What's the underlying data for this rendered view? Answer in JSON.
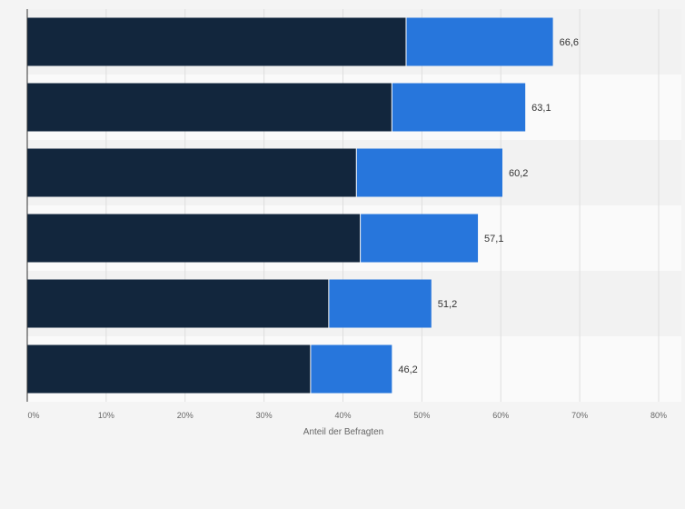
{
  "chart_data": {
    "type": "bar",
    "orientation": "horizontal",
    "stacked": true,
    "xlabel": "Anteil der Befragten",
    "xlim": [
      0,
      80
    ],
    "x_ticks": [
      "0%",
      "10%",
      "20%",
      "30%",
      "40%",
      "50%",
      "60%",
      "70%",
      "80%"
    ],
    "x_tick_values": [
      0,
      10,
      20,
      30,
      40,
      50,
      60,
      70,
      80
    ],
    "grid": true,
    "categories": [
      "",
      "",
      "",
      "",
      "",
      ""
    ],
    "series": [
      {
        "name": "",
        "color": "#12263d",
        "values": [
          48.0,
          46.2,
          41.7,
          42.2,
          38.2,
          35.9
        ]
      },
      {
        "name": "",
        "color": "#2776dc",
        "values": [
          18.6,
          16.9,
          18.5,
          14.9,
          13.0,
          10.3
        ]
      }
    ],
    "totals_labels": [
      "66,6",
      "63,1",
      "60,2",
      "57,1",
      "51,2",
      "46,2"
    ],
    "totals": [
      66.6,
      63.1,
      60.2,
      57.1,
      51.2,
      46.2
    ]
  },
  "colors": {
    "background": "#f4f4f4",
    "band_light": "#fafafa",
    "band_dark": "#f2f2f2",
    "grid": "#dedede",
    "axis": "#333333",
    "tick_text": "#666666",
    "label_text": "#333333"
  }
}
